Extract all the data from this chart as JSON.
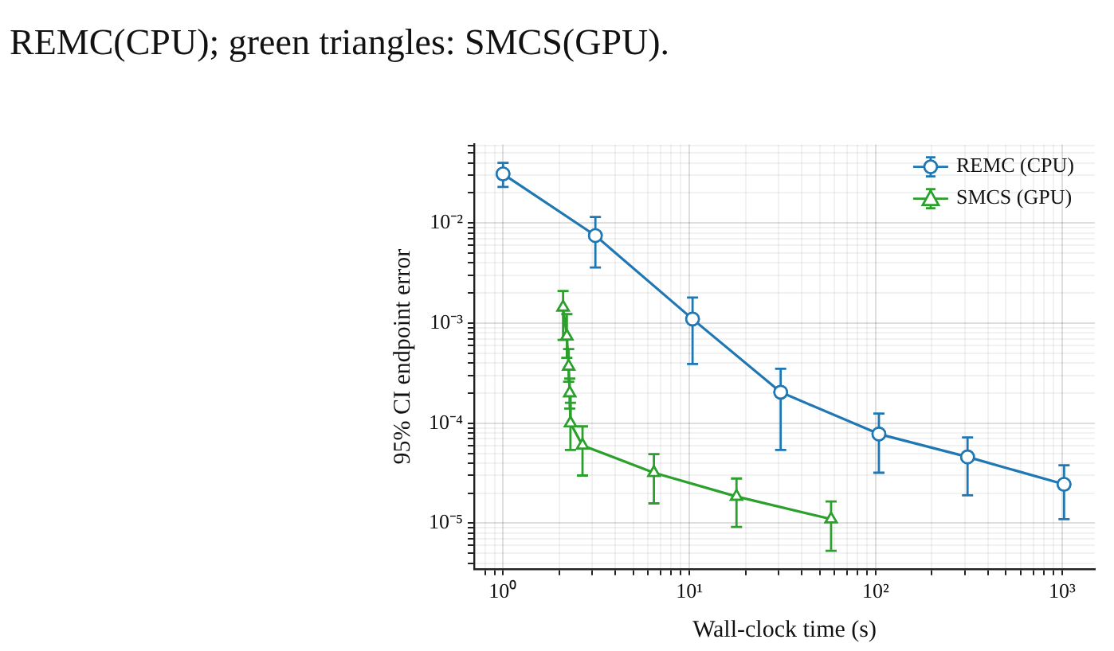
{
  "chart_data": {
    "type": "line",
    "xlabel": "Wall-clock time (s)",
    "ylabel": "95% CI endpoint error",
    "annotations": [
      "REMC(CPU); green triangles: SMCS(GPU)."
    ],
    "log": "xy",
    "grid": true,
    "legend": "top right",
    "line_style": "solid",
    "xlim": [
      0.71,
      1500
    ],
    "ylim": [
      3.5e-06,
      0.061
    ],
    "xticks": [
      {
        "value": 0.8,
        "label": null
      },
      {
        "value": 0.9,
        "label": null
      },
      {
        "value": 1,
        "label": "10⁰"
      },
      {
        "value": 2,
        "label": null
      },
      {
        "value": 3,
        "label": null
      },
      {
        "value": 4,
        "label": null
      },
      {
        "value": 5,
        "label": null
      },
      {
        "value": 6,
        "label": null
      },
      {
        "value": 7,
        "label": null
      },
      {
        "value": 8,
        "label": null
      },
      {
        "value": 9,
        "label": null
      },
      {
        "value": 10,
        "label": "10¹"
      },
      {
        "value": 20,
        "label": null
      },
      {
        "value": 30,
        "label": null
      },
      {
        "value": 40,
        "label": null
      },
      {
        "value": 50,
        "label": null
      },
      {
        "value": 60,
        "label": null
      },
      {
        "value": 70,
        "label": null
      },
      {
        "value": 80,
        "label": null
      },
      {
        "value": 90,
        "label": null
      },
      {
        "value": 100,
        "label": "10²"
      },
      {
        "value": 200,
        "label": null
      },
      {
        "value": 300,
        "label": null
      },
      {
        "value": 400,
        "label": null
      },
      {
        "value": 500,
        "label": null
      },
      {
        "value": 600,
        "label": null
      },
      {
        "value": 700,
        "label": null
      },
      {
        "value": 800,
        "label": null
      },
      {
        "value": 900,
        "label": null
      },
      {
        "value": 1000,
        "label": "10³"
      }
    ],
    "yticks": [
      {
        "value": 4e-06,
        "label": null
      },
      {
        "value": 5e-06,
        "label": null
      },
      {
        "value": 6e-06,
        "label": null
      },
      {
        "value": 7e-06,
        "label": null
      },
      {
        "value": 8e-06,
        "label": null
      },
      {
        "value": 9e-06,
        "label": null
      },
      {
        "value": 1e-05,
        "label": "10⁻⁵"
      },
      {
        "value": 2e-05,
        "label": null
      },
      {
        "value": 3e-05,
        "label": null
      },
      {
        "value": 4e-05,
        "label": null
      },
      {
        "value": 5e-05,
        "label": null
      },
      {
        "value": 6e-05,
        "label": null
      },
      {
        "value": 7e-05,
        "label": null
      },
      {
        "value": 8e-05,
        "label": null
      },
      {
        "value": 9e-05,
        "label": null
      },
      {
        "value": 0.0001,
        "label": "10⁻⁴"
      },
      {
        "value": 0.0002,
        "label": null
      },
      {
        "value": 0.0003,
        "label": null
      },
      {
        "value": 0.0004,
        "label": null
      },
      {
        "value": 0.0005,
        "label": null
      },
      {
        "value": 0.0006,
        "label": null
      },
      {
        "value": 0.0007,
        "label": null
      },
      {
        "value": 0.0008,
        "label": null
      },
      {
        "value": 0.0009,
        "label": null
      },
      {
        "value": 0.001,
        "label": "10⁻³"
      },
      {
        "value": 0.002,
        "label": null
      },
      {
        "value": 0.003,
        "label": null
      },
      {
        "value": 0.004,
        "label": null
      },
      {
        "value": 0.005,
        "label": null
      },
      {
        "value": 0.006,
        "label": null
      },
      {
        "value": 0.007,
        "label": null
      },
      {
        "value": 0.008,
        "label": null
      },
      {
        "value": 0.009,
        "label": null
      },
      {
        "value": 0.01,
        "label": "10⁻²"
      },
      {
        "value": 0.02,
        "label": null
      },
      {
        "value": 0.03,
        "label": null
      },
      {
        "value": 0.04,
        "label": null
      },
      {
        "value": 0.05,
        "label": null
      },
      {
        "value": 0.06,
        "label": null
      }
    ],
    "series": [
      {
        "name": "REMC (CPU)",
        "color": "#1f77b4",
        "marker": "circle",
        "x": [
          1,
          3.13,
          10.4,
          30.9,
          104,
          311,
          1025
        ],
        "values": [
          0.031,
          0.0075,
          0.0011,
          0.000204,
          7.8e-05,
          4.6e-05,
          2.45e-05
        ],
        "errors": [
          [
            0.023,
            0.04
          ],
          [
            0.0036,
            0.0115
          ],
          [
            0.00039,
            0.0018
          ],
          [
            5.4e-05,
            0.00035
          ],
          [
            3.2e-05,
            0.000125
          ],
          [
            1.9e-05,
            7.2e-05
          ],
          [
            1.1e-05,
            3.8e-05
          ]
        ]
      },
      {
        "name": "SMCS (GPU)",
        "color": "#2ca02c",
        "marker": "triangle",
        "x": [
          2.1,
          2.2,
          2.25,
          2.28,
          2.3,
          2.67,
          6.45,
          17.9,
          57.6
        ],
        "values": [
          0.00144,
          0.00074,
          0.00037,
          0.0002,
          0.0001,
          6e-05,
          3.2e-05,
          1.85e-05,
          1.1e-05
        ],
        "errors": [
          [
            0.00068,
            0.0021
          ],
          [
            0.00045,
            0.00123
          ],
          [
            0.00026,
            0.00055
          ],
          [
            0.00014,
            0.00028
          ],
          [
            5.4e-05,
            0.00016
          ],
          [
            3e-05,
            9.3e-05
          ],
          [
            1.58e-05,
            4.9e-05
          ],
          [
            9.2e-06,
            2.8e-05
          ],
          [
            5.3e-06,
            1.65e-05
          ]
        ]
      }
    ]
  }
}
